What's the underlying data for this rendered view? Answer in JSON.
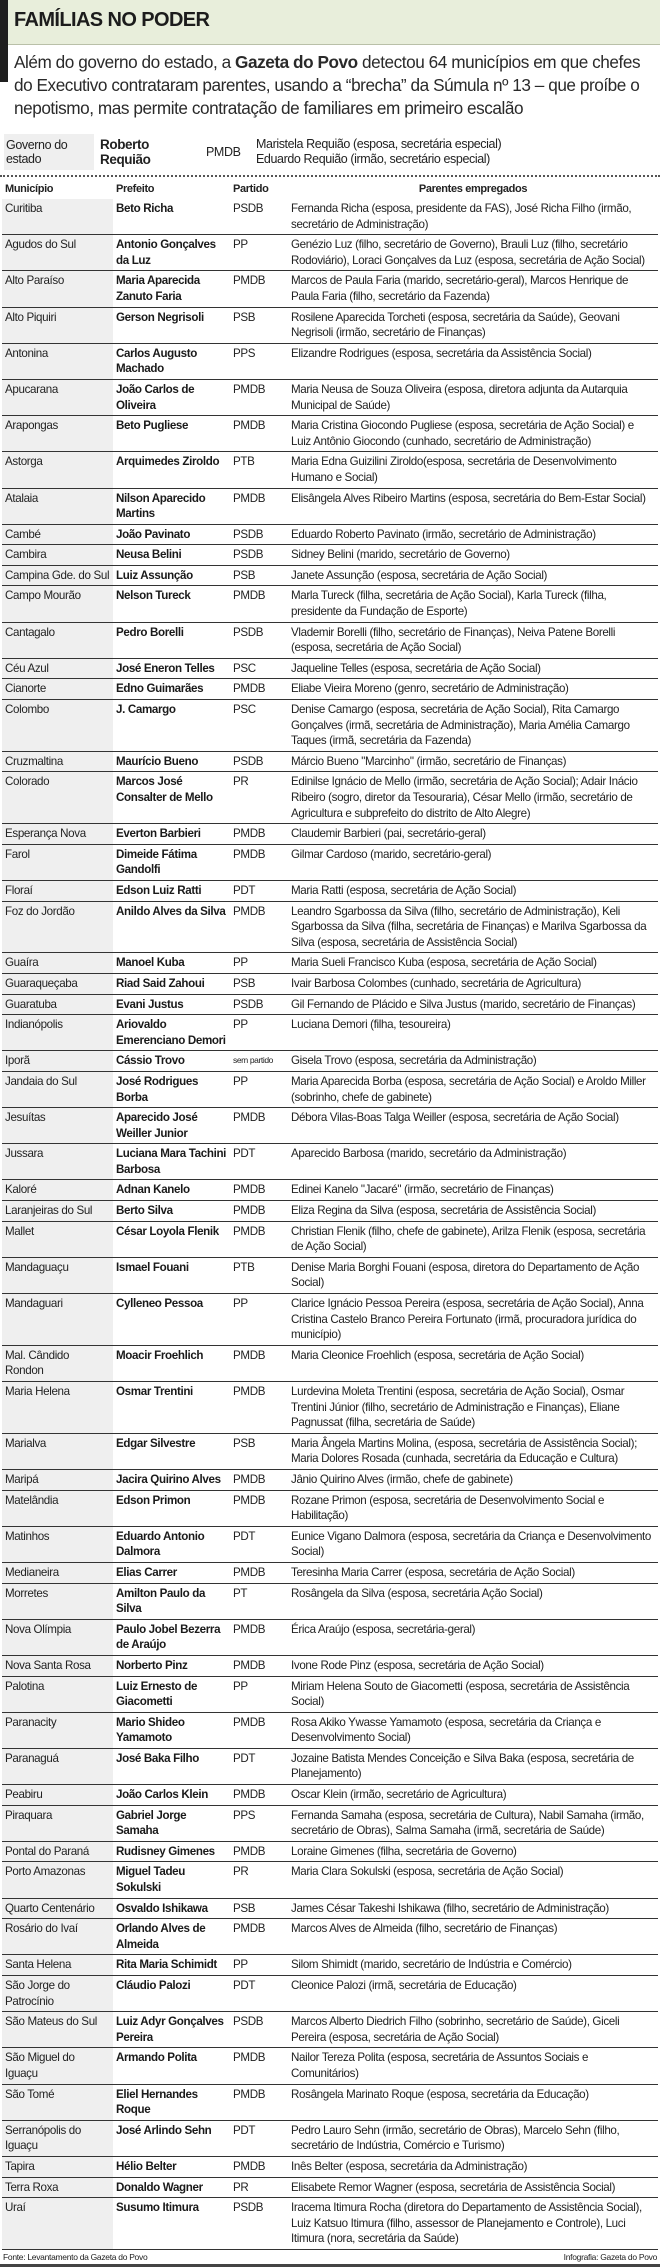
{
  "header": {
    "title": "FAMÍLIAS NO PODER"
  },
  "intro": {
    "before": "Além do governo do estado, a ",
    "bold": "Gazeta do Povo",
    "after": " detectou 64 municípios em que chefes do Executivo contrataram parentes, usando a “brecha” da Súmula nº 13 – que proíbe o nepotismo, mas permite contratação de familiares em primeiro escalão"
  },
  "governo": {
    "label": "Governo do estado",
    "governador": "Roberto Requião",
    "partido": "PMDB",
    "parentes": [
      "Maristela Requião (esposa, secretária especial)",
      "Eduardo Requião (irmão, secretário especial)"
    ]
  },
  "table": {
    "headers": {
      "municipio": "Município",
      "prefeito": "Prefeito",
      "partido": "Partido",
      "parentes": "Parentes empregados"
    },
    "rows": [
      [
        "Curitiba",
        "Beto Richa",
        "PSDB",
        "Fernanda Richa (esposa, presidente da FAS), José Richa Filho (irmão, secretário de Administração)"
      ],
      [
        "Agudos do Sul",
        "Antonio Gonçalves da Luz",
        "PP",
        "Genézio Luz (filho, secretário de Governo), Brauli Luz (filho, secretário Rodoviário), Loraci Gonçalves da Luz (esposa, secretária de Ação Social)"
      ],
      [
        "Alto Paraíso",
        "Maria Aparecida Zanuto Faria",
        "PMDB",
        "Marcos de Paula Faria (marido, secretário-geral), Marcos Henrique de Paula Faria (filho, secretário da Fazenda)"
      ],
      [
        "Alto Piquiri",
        "Gerson Negrisoli",
        "PSB",
        "Rosilene Aparecida Torcheti (esposa, secretária da Saúde), Geovani Negrisoli (irmão, secretário de Finanças)"
      ],
      [
        "Antonina",
        "Carlos Augusto Machado",
        "PPS",
        "Elizandre Rodrigues (esposa, secretária da Assistência Social)"
      ],
      [
        "Apucarana",
        "João Carlos de Oliveira",
        "PMDB",
        "Maria Neusa de Souza Oliveira (esposa, diretora adjunta da Autarquia Municipal de Saúde)"
      ],
      [
        "Arapongas",
        "Beto Pugliese",
        "PMDB",
        "Maria Cristina Giocondo Pugliese (esposa, secretária de Ação Social) e Luiz Antônio Giocondo (cunhado, secretário de Administração)"
      ],
      [
        "Astorga",
        "Arquimedes Ziroldo",
        "PTB",
        "Maria Edna Guizilini Ziroldo(esposa, secretária de Desenvolvimento Humano e Social)"
      ],
      [
        "Atalaia",
        "Nilson Aparecido Martins",
        "PMDB",
        "Elisângela Alves Ribeiro Martins (esposa, secretária do Bem-Estar Social)"
      ],
      [
        "Cambé",
        "João Pavinato",
        "PSDB",
        "Eduardo Roberto Pavinato (irmão, secretário de Administração)"
      ],
      [
        "Cambira",
        "Neusa Belini",
        "PSDB",
        "Sidney Belini (marido, secretário de Governo)"
      ],
      [
        "Campina Gde. do Sul",
        "Luiz Assunção",
        "PSB",
        "Janete Assunção (esposa, secretária de Ação Social)"
      ],
      [
        "Campo Mourão",
        "Nelson Tureck",
        "PMDB",
        "Marla Tureck (filha, secretária de Ação Social), Karla Tureck (filha, presidente da Fundação de Esporte)"
      ],
      [
        "Cantagalo",
        "Pedro Borelli",
        "PSDB",
        "Vlademir Borelli (filho, secretário de Finanças), Neiva Patene Borelli (esposa, secretária de Ação Social)"
      ],
      [
        "Céu Azul",
        "José Eneron Telles",
        "PSC",
        "Jaqueline Telles (esposa, secretária de Ação Social)"
      ],
      [
        "Cianorte",
        "Edno Guimarães",
        "PMDB",
        "Eliabe Vieira Moreno (genro, secretário de Administração)"
      ],
      [
        "Colombo",
        "J. Camargo",
        "PSC",
        "Denise Camargo (esposa, secretária de Ação Social), Rita Camargo Gonçalves (irmã, secretária de Administração), Maria Amélia Camargo Taques (irmã, secretária da Fazenda)"
      ],
      [
        "Cruzmaltina",
        "Maurício Bueno",
        "PSDB",
        "Márcio Bueno \"Marcinho\" (irmão, secretário de Finanças)"
      ],
      [
        "Colorado",
        "Marcos José Consalter de Mello",
        "PR",
        "Edinilse Ignácio de Mello (irmão, secretária de Ação Social); Adair Inácio Ribeiro (sogro, diretor da Tesouraria), César Mello (irmão, secretário de Agricultura e subprefeito do distrito de Alto Alegre)"
      ],
      [
        "Esperança Nova",
        "Everton Barbieri",
        "PMDB",
        "Claudemir Barbieri (pai, secretário-geral)"
      ],
      [
        "Farol",
        "Dimeide Fátima Gandolfi",
        "PMDB",
        "Gilmar Cardoso (marido, secretário-geral)"
      ],
      [
        "Floraí",
        "Edson Luiz Ratti",
        "PDT",
        "Maria Ratti (esposa, secretária de Ação Social)"
      ],
      [
        "Foz do Jordão",
        "Anildo Alves da Silva",
        "PMDB",
        "Leandro Sgarbossa da Silva (filho, secretário de Administração), Keli Sgarbossa da Silva (filha, secretária de Finanças) e Marilva Sgarbossa da Silva (esposa, secretária de Assistência Social)"
      ],
      [
        "Guaíra",
        "Manoel Kuba",
        "PP",
        "Maria Sueli Francisco Kuba (esposa, secretária de Ação Social)"
      ],
      [
        "Guaraqueçaba",
        "Riad Said Zahoui",
        "PSB",
        "Ivair Barbosa Colombes (cunhado, secretária de Agricultura)"
      ],
      [
        "Guaratuba",
        "Evani Justus",
        "PSDB",
        "Gil Fernando de Plácido e Silva Justus (marido, secretário de Finanças)"
      ],
      [
        "Indianópolis",
        "Ariovaldo Emerenciano Demori",
        "PP",
        "Luciana Demori (filha, tesoureira)"
      ],
      [
        "Iporã",
        "Cássio Trovo",
        "sem partido",
        "Gisela Trovo (esposa, secretária da Administração)"
      ],
      [
        "Jandaia do Sul",
        "José Rodrigues Borba",
        "PP",
        "Maria Aparecida Borba (esposa, secretária de Ação Social) e Aroldo Miller (sobrinho, chefe de gabinete)"
      ],
      [
        "Jesuítas",
        "Aparecido José Weiller Junior",
        "PMDB",
        "Débora Vilas-Boas Talga Weiller (esposa, secretária de Ação Social)"
      ],
      [
        "Jussara",
        "Luciana Mara Tachini Barbosa",
        "PDT",
        "Aparecido Barbosa (marido, secretário da Administração)"
      ],
      [
        "Kaloré",
        "Adnan Kanelo",
        "PMDB",
        "Edinei Kanelo \"Jacaré\" (irmão, secretário de Finanças)"
      ],
      [
        "Laranjeiras do Sul",
        "Berto Silva",
        "PMDB",
        "Eliza Regina da Silva (esposa, secretária de Assistência Social)"
      ],
      [
        "Mallet",
        "César Loyola Flenik",
        "PMDB",
        "Christian Flenik (filho, chefe de gabinete), Arilza Flenik (esposa, secretária de Ação Social)"
      ],
      [
        "Mandaguaçu",
        "Ismael Fouani",
        "PTB",
        "Denise Maria Borghi Fouani (esposa, diretora do Departamento de Ação Social)"
      ],
      [
        "Mandaguari",
        "Cylleneo Pessoa",
        "PP",
        "Clarice Ignácio Pessoa Pereira (esposa, secretária de Ação Social), Anna Cristina Castelo Branco Pereira Fortunato (irmã, procuradora jurídica do município)"
      ],
      [
        "Mal. Cândido Rondon",
        "Moacir Froehlich",
        "PMDB",
        "Maria Cleonice Froehlich (esposa, secretária de Ação Social)"
      ],
      [
        "Maria Helena",
        "Osmar Trentini",
        "PMDB",
        "Lurdevina Moleta Trentini (esposa, secretária de Ação Social), Osmar Trentini Júnior (filho, secretário de Administração e Finanças), Eliane Pagnussat (filha, secretária de Saúde)"
      ],
      [
        "Marialva",
        "Edgar Silvestre",
        "PSB",
        "Maria Ângela Martins Molina, (esposa, secretária de Assistência Social); Maria Dolores Rosada (cunhada, secretária da Educação e Cultura)"
      ],
      [
        "Maripá",
        "Jacira Quirino Alves",
        "PMDB",
        "Jânio Quirino Alves (irmão, chefe de gabinete)"
      ],
      [
        "Matelândia",
        "Edson Primon",
        "PMDB",
        "Rozane Primon (esposa, secretária de Desenvolvimento Social e Habilitação)"
      ],
      [
        "Matinhos",
        "Eduardo Antonio Dalmora",
        "PDT",
        "Eunice Vigano Dalmora (esposa, secretária da Criança e Desenvolvimento Social)"
      ],
      [
        "Medianeira",
        "Elias Carrer",
        "PMDB",
        "Teresinha Maria Carrer (esposa, secretária de Ação Social)"
      ],
      [
        "Morretes",
        "Amilton Paulo da Silva",
        "PT",
        "Rosângela da Silva (esposa, secretária Ação Social)"
      ],
      [
        "Nova Olímpia",
        "Paulo Jobel Bezerra de Araújo",
        "PMDB",
        "Érica Araújo (esposa, secretária-geral)"
      ],
      [
        "Nova Santa Rosa",
        "Norberto Pinz",
        "PMDB",
        "Ivone Rode Pinz (esposa, secretária de Ação Social)"
      ],
      [
        "Palotina",
        "Luiz Ernesto de Giacometti",
        "PP",
        "Miriam Helena Souto de Giacometti (esposa, secretária de Assistência Social)"
      ],
      [
        "Paranacity",
        "Mario Shideo Yamamoto",
        "PMDB",
        "Rosa Akiko Ywasse Yamamoto (esposa, secretária da Criança e Desenvolvimento Social)"
      ],
      [
        "Paranaguá",
        "José Baka Filho",
        "PDT",
        "Jozaine Batista Mendes Conceição e Silva Baka (esposa, secretária de Planejamento)"
      ],
      [
        "Peabiru",
        "João Carlos Klein",
        "PMDB",
        "Oscar Klein (irmão, secretário de Agricultura)"
      ],
      [
        "Piraquara",
        "Gabriel Jorge Samaha",
        "PPS",
        "Fernanda Samaha (esposa, secretária de Cultura), Nabil Samaha (irmão, secretário de Obras), Salma Samaha (irmã, secretária de Saúde)"
      ],
      [
        "Pontal do Paraná",
        "Rudisney Gimenes",
        "PMDB",
        "Loraine Gimenes (filha, secretária de Governo)"
      ],
      [
        "Porto Amazonas",
        "Miguel Tadeu Sokulski",
        "PR",
        "Maria Clara Sokulski (esposa, secretária de Ação Social)"
      ],
      [
        "Quarto Centenário",
        "Osvaldo Ishikawa",
        "PSB",
        "James César Takeshi Ishikawa (filho, secretário de Administração)"
      ],
      [
        "Rosário do Ivaí",
        "Orlando Alves de Almeida",
        "PMDB",
        "Marcos Alves de Almeida (filho, secretário de Finanças)"
      ],
      [
        "Santa Helena",
        "Rita Maria Schimidt",
        "PP",
        "Silom Shimidt (marido, secretário de Indústria e Comércio)"
      ],
      [
        "São Jorge do Patrocínio",
        "Cláudio Palozi",
        "PDT",
        "Cleonice Palozi (irmã, secretária de Educação)"
      ],
      [
        "São Mateus do Sul",
        "Luiz Adyr Gonçalves Pereira",
        "PSDB",
        "Marcos Alberto Diedrich Filho (sobrinho, secretário de Saúde), Giceli Pereira (esposa, secretária de Ação Social)"
      ],
      [
        "São Miguel do Iguaçu",
        "Armando Polita",
        "PMDB",
        "Nailor Tereza Polita (esposa, secretária de Assuntos Sociais e Comunitários)"
      ],
      [
        "São Tomé",
        "Eliel Hernandes Roque",
        "PMDB",
        "Rosângela Marinato Roque (esposa, secretária da Educação)"
      ],
      [
        "Serranópolis do Iguaçu",
        "José Arlindo Sehn",
        "PDT",
        "Pedro Lauro Sehn (irmão, secretário de Obras), Marcelo Sehn (filho, secretário de Indústria, Comércio e Turismo)"
      ],
      [
        "Tapira",
        "Hélio Belter",
        "PMDB",
        "Inês Belter (esposa, secretária da Administração)"
      ],
      [
        "Terra Roxa",
        "Donaldo Wagner",
        "PR",
        "Elisabete Remor Wagner (esposa, secretária de Assistência Social)"
      ],
      [
        "Uraí",
        "Susumo Itimura",
        "PSDB",
        "Iracema Itimura Rocha (diretora do Departamento de Assistência Social), Luiz Katsuo Itimura (filho, assessor de Planejamento e Controle), Luci Itimura (nora, secretária da Saúde)"
      ]
    ]
  },
  "footer": {
    "source": "Fonte: Levantamento da Gazeta do Povo",
    "credit": "Infografia: Gazeta do Povo"
  }
}
